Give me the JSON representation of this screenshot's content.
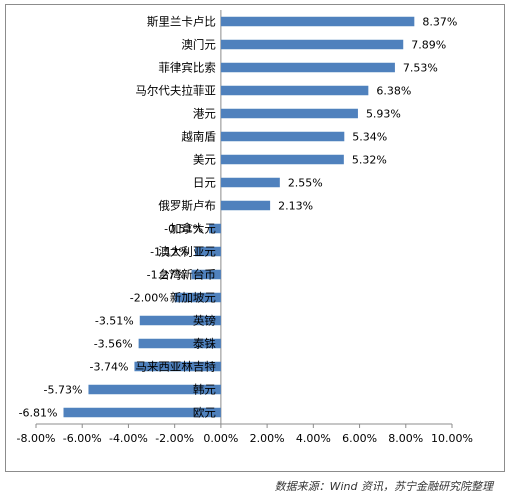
{
  "chart_data": {
    "type": "bar",
    "orientation": "horizontal",
    "categories": [
      "斯里兰卡卢比",
      "澳门元",
      "菲律宾比索",
      "马尔代夫拉菲亚",
      "港元",
      "越南盾",
      "美元",
      "日元",
      "俄罗斯卢布",
      "加拿大元",
      "澳大利亚元",
      "台湾新台币",
      "新加坡元",
      "英镑",
      "泰铢",
      "马来西亚林吉特",
      "韩元",
      "欧元"
    ],
    "values": [
      8.37,
      7.89,
      7.53,
      6.38,
      5.93,
      5.34,
      5.32,
      2.55,
      2.13,
      -0.51,
      -1.12,
      -1.27,
      -2.0,
      -3.51,
      -3.56,
      -3.74,
      -5.73,
      -6.81
    ],
    "data_labels": [
      "8.37%",
      "7.89%",
      "7.53%",
      "6.38%",
      "5.93%",
      "5.34%",
      "5.32%",
      "2.55%",
      "2.13%",
      "-0.51%",
      "-1.12%",
      "-1.27%",
      "-2.00%",
      "-3.51%",
      "-3.56%",
      "-3.74%",
      "-5.73%",
      "-6.81%"
    ],
    "x_ticks": [
      "-8.00%",
      "-6.00%",
      "-4.00%",
      "-2.00%",
      "0.00%",
      "2.00%",
      "4.00%",
      "6.00%",
      "8.00%",
      "10.00%"
    ],
    "xlim": [
      -8,
      10
    ],
    "grid": false,
    "bar_color": "#4f81bd",
    "title": "",
    "xlabel": "",
    "ylabel": ""
  },
  "source": "数据来源：Wind 资讯，苏宁金融研究院整理"
}
